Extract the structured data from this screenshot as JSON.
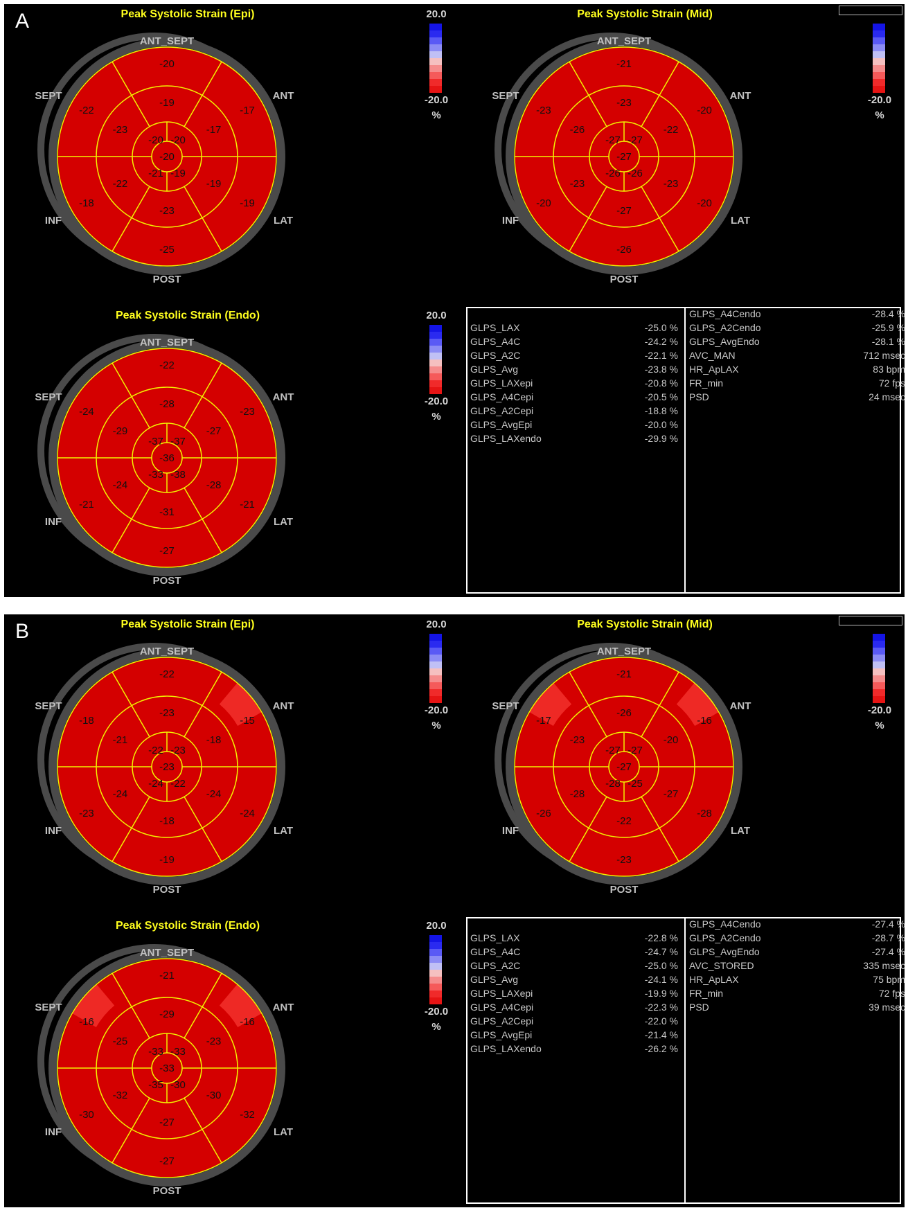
{
  "panels": [
    {
      "letter": "A",
      "plots": [
        {
          "title": "Peak Systolic Strain (Epi)",
          "labels": {
            "ant_sept": "ANT_SEPT",
            "ant": "ANT",
            "lat": "LAT",
            "post": "POST",
            "inf": "INF",
            "sept": "SEPT"
          },
          "values": {
            "basal": [
              "-20",
              "-17",
              "-19",
              "-25",
              "-18",
              "-22"
            ],
            "mid": [
              "-19",
              "-17",
              "-19",
              "-23",
              "-22",
              "-23"
            ],
            "apical": [
              "-20",
              "-20",
              "-19",
              "-21"
            ],
            "apex": "-20"
          },
          "highlights": []
        },
        {
          "title": "Peak Systolic Strain (Mid)",
          "labels": {
            "ant_sept": "ANT_SEPT",
            "ant": "ANT",
            "lat": "LAT",
            "post": "POST",
            "inf": "INF",
            "sept": "SEPT"
          },
          "values": {
            "basal": [
              "-21",
              "-20",
              "-20",
              "-26",
              "-20",
              "-23"
            ],
            "mid": [
              "-23",
              "-22",
              "-23",
              "-27",
              "-23",
              "-26"
            ],
            "apical": [
              "-27",
              "-27",
              "-26",
              "-26"
            ],
            "apex": "-27"
          },
          "highlights": []
        },
        {
          "title": "Peak Systolic Strain (Endo)",
          "labels": {
            "ant_sept": "ANT_SEPT",
            "ant": "ANT",
            "lat": "LAT",
            "post": "POST",
            "inf": "INF",
            "sept": "SEPT"
          },
          "values": {
            "basal": [
              "-22",
              "-23",
              "-21",
              "-27",
              "-21",
              "-24"
            ],
            "mid": [
              "-28",
              "-27",
              "-28",
              "-31",
              "-24",
              "-29"
            ],
            "apical": [
              "-37",
              "-37",
              "-38",
              "-33"
            ],
            "apex": "-36"
          },
          "highlights": []
        }
      ],
      "scales": [
        {
          "top": "20.0",
          "bottom": "-20.0",
          "unit": "%"
        },
        {
          "top": "",
          "bottom": "-20.0",
          "unit": "%"
        },
        {
          "top": "20.0",
          "bottom": "-20.0",
          "unit": "%"
        }
      ],
      "table": {
        "left": [
          {
            "label": "GLPS_LAX",
            "value": "-25.0 %"
          },
          {
            "label": "GLPS_A4C",
            "value": "-24.2 %"
          },
          {
            "label": "GLPS_A2C",
            "value": "-22.1 %"
          },
          {
            "label": "GLPS_Avg",
            "value": "-23.8 %"
          },
          {
            "label": "GLPS_LAXepi",
            "value": "-20.8 %"
          },
          {
            "label": "GLPS_A4Cepi",
            "value": "-20.5 %"
          },
          {
            "label": "GLPS_A2Cepi",
            "value": "-18.8 %"
          },
          {
            "label": "GLPS_AvgEpi",
            "value": "-20.0 %"
          },
          {
            "label": "GLPS_LAXendo",
            "value": "-29.9 %"
          }
        ],
        "right": [
          {
            "label": "GLPS_A4Cendo",
            "value": "-28.4 %"
          },
          {
            "label": "GLPS_A2Cendo",
            "value": "-25.9 %"
          },
          {
            "label": "GLPS_AvgEndo",
            "value": "-28.1 %"
          },
          {
            "label": "AVC_MAN",
            "value": "712 msec"
          },
          {
            "label": "HR_ApLAX",
            "value": "83 bpm"
          },
          {
            "label": "FR_min",
            "value": "72 fps"
          },
          {
            "label": "PSD",
            "value": "24 msec"
          }
        ]
      }
    },
    {
      "letter": "B",
      "plots": [
        {
          "title": "Peak Systolic Strain (Epi)",
          "labels": {
            "ant_sept": "ANT_SEPT",
            "ant": "ANT",
            "lat": "LAT",
            "post": "POST",
            "inf": "INF",
            "sept": "SEPT"
          },
          "values": {
            "basal": [
              "-22",
              "-15",
              "-24",
              "-19",
              "-23",
              "-18"
            ],
            "mid": [
              "-23",
              "-18",
              "-24",
              "-18",
              "-24",
              "-21"
            ],
            "apical": [
              "-22",
              "-23",
              "-22",
              "-24"
            ],
            "apex": "-23"
          },
          "highlights": [
            "ant"
          ]
        },
        {
          "title": "Peak Systolic Strain (Mid)",
          "labels": {
            "ant_sept": "ANT_SEPT",
            "ant": "ANT",
            "lat": "LAT",
            "post": "POST",
            "inf": "INF",
            "sept": "SEPT"
          },
          "values": {
            "basal": [
              "-21",
              "-16",
              "-28",
              "-23",
              "-26",
              "-17"
            ],
            "mid": [
              "-26",
              "-20",
              "-27",
              "-22",
              "-28",
              "-23"
            ],
            "apical": [
              "-27",
              "-27",
              "-25",
              "-28"
            ],
            "apex": "-27"
          },
          "highlights": [
            "ant",
            "sept"
          ]
        },
        {
          "title": "Peak Systolic Strain (Endo)",
          "labels": {
            "ant_sept": "ANT_SEPT",
            "ant": "ANT",
            "lat": "LAT",
            "post": "POST",
            "inf": "INF",
            "sept": "SEPT"
          },
          "values": {
            "basal": [
              "-21",
              "-16",
              "-32",
              "-27",
              "-30",
              "-16"
            ],
            "mid": [
              "-29",
              "-23",
              "-30",
              "-27",
              "-32",
              "-25"
            ],
            "apical": [
              "-33",
              "-33",
              "-30",
              "-35"
            ],
            "apex": "-33"
          },
          "highlights": [
            "ant",
            "sept"
          ]
        }
      ],
      "scales": [
        {
          "top": "20.0",
          "bottom": "-20.0",
          "unit": "%"
        },
        {
          "top": "",
          "bottom": "-20.0",
          "unit": "%"
        },
        {
          "top": "20.0",
          "bottom": "-20.0",
          "unit": "%"
        }
      ],
      "table": {
        "left": [
          {
            "label": "GLPS_LAX",
            "value": "-22.8 %"
          },
          {
            "label": "GLPS_A4C",
            "value": "-24.7 %"
          },
          {
            "label": "GLPS_A2C",
            "value": "-25.0 %"
          },
          {
            "label": "GLPS_Avg",
            "value": "-24.1 %"
          },
          {
            "label": "GLPS_LAXepi",
            "value": "-19.9 %"
          },
          {
            "label": "GLPS_A4Cepi",
            "value": "-22.3 %"
          },
          {
            "label": "GLPS_A2Cepi",
            "value": "-22.0 %"
          },
          {
            "label": "GLPS_AvgEpi",
            "value": "-21.4 %"
          },
          {
            "label": "GLPS_LAXendo",
            "value": "-26.2 %"
          }
        ],
        "right": [
          {
            "label": "GLPS_A4Cendo",
            "value": "-27.4 %"
          },
          {
            "label": "GLPS_A2Cendo",
            "value": "-28.7 %"
          },
          {
            "label": "GLPS_AvgEndo",
            "value": "-27.4 %"
          },
          {
            "label": "AVC_STORED",
            "value": "335 msec"
          },
          {
            "label": "HR_ApLAX",
            "value": "75 bpm"
          },
          {
            "label": "FR_min",
            "value": "72 fps"
          },
          {
            "label": "PSD",
            "value": "39 msec"
          }
        ]
      }
    }
  ],
  "colors": {
    "segment_fill": "#d40000",
    "segment_highlight": "#f2302c",
    "segment_lines": "#f2f200",
    "outer_ring": "#4a4a4a",
    "title_color": "#ffff1e",
    "label_color": "#c0c0c0"
  }
}
